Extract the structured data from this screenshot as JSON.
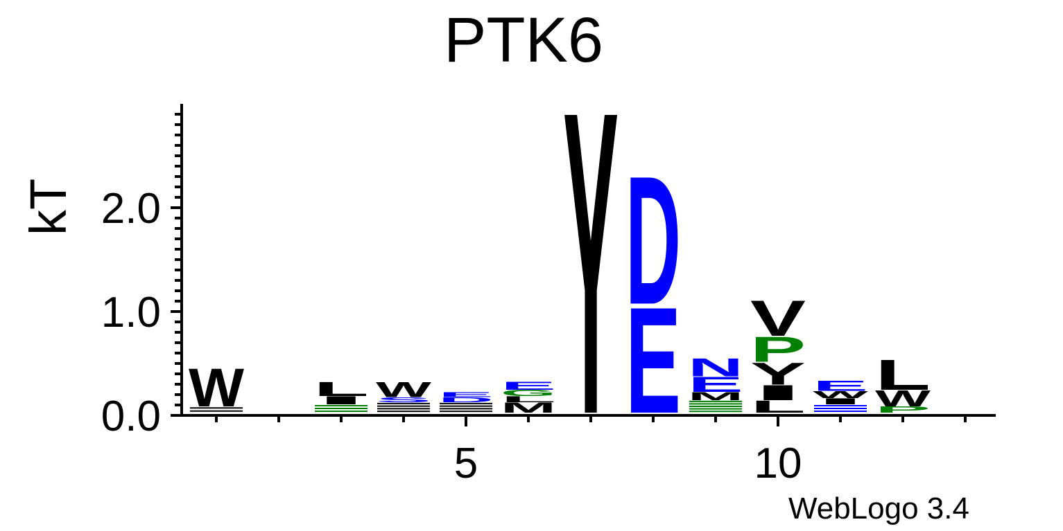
{
  "chart_data": {
    "type": "sequence-logo",
    "title": "PTK6",
    "ylabel": "kT",
    "xlabel": "",
    "ylim": [
      0,
      3.0
    ],
    "y_ticks": [
      "0.0",
      "1.0",
      "2.0"
    ],
    "x_ticks": [
      "5",
      "10"
    ],
    "positions": [
      1,
      2,
      3,
      4,
      5,
      6,
      7,
      8,
      9,
      10,
      11,
      12,
      13
    ],
    "colors": {
      "black": "#000000",
      "blue": "#0000ff",
      "green": "#008000"
    },
    "columns": [
      {
        "pos": 1,
        "stack": [
          {
            "letter": "·",
            "height": 0.06,
            "color": "black"
          },
          {
            "letter": "W",
            "height": 0.38,
            "color": "black"
          }
        ]
      },
      {
        "pos": 2,
        "stack": []
      },
      {
        "pos": 3,
        "stack": [
          {
            "letter": "·",
            "height": 0.08,
            "color": "green"
          },
          {
            "letter": "I",
            "height": 0.08,
            "color": "black"
          },
          {
            "letter": "L",
            "height": 0.14,
            "color": "black"
          }
        ]
      },
      {
        "pos": 4,
        "stack": [
          {
            "letter": "·",
            "height": 0.1,
            "color": "black"
          },
          {
            "letter": "S",
            "height": 0.05,
            "color": "blue"
          },
          {
            "letter": "W",
            "height": 0.15,
            "color": "black"
          }
        ]
      },
      {
        "pos": 5,
        "stack": [
          {
            "letter": "·",
            "height": 0.1,
            "color": "black"
          },
          {
            "letter": "D",
            "height": 0.05,
            "color": "blue"
          },
          {
            "letter": "E",
            "height": 0.05,
            "color": "blue"
          }
        ]
      },
      {
        "pos": 6,
        "stack": [
          {
            "letter": "M",
            "height": 0.1,
            "color": "black"
          },
          {
            "letter": "L",
            "height": 0.06,
            "color": "black"
          },
          {
            "letter": "G",
            "height": 0.06,
            "color": "green"
          },
          {
            "letter": "E",
            "height": 0.08,
            "color": "blue"
          }
        ]
      },
      {
        "pos": 7,
        "stack": [
          {
            "letter": "Y",
            "height": 3.0,
            "color": "black"
          }
        ]
      },
      {
        "pos": 8,
        "stack": [
          {
            "letter": "E",
            "height": 1.05,
            "color": "blue"
          },
          {
            "letter": "D",
            "height": 1.27,
            "color": "blue"
          }
        ]
      },
      {
        "pos": 9,
        "stack": [
          {
            "letter": "·",
            "height": 0.12,
            "color": "green"
          },
          {
            "letter": "M",
            "height": 0.08,
            "color": "black"
          },
          {
            "letter": "E",
            "height": 0.15,
            "color": "blue"
          },
          {
            "letter": "N",
            "height": 0.18,
            "color": "blue"
          }
        ]
      },
      {
        "pos": 10,
        "stack": [
          {
            "letter": "L",
            "height": 0.12,
            "color": "black"
          },
          {
            "letter": "I",
            "height": 0.15,
            "color": "black"
          },
          {
            "letter": "Y",
            "height": 0.22,
            "color": "black"
          },
          {
            "letter": "P",
            "height": 0.25,
            "color": "green"
          },
          {
            "letter": "V",
            "height": 0.35,
            "color": "black"
          }
        ]
      },
      {
        "pos": 11,
        "stack": [
          {
            "letter": "·",
            "height": 0.08,
            "color": "blue"
          },
          {
            "letter": "I",
            "height": 0.06,
            "color": "black"
          },
          {
            "letter": "W",
            "height": 0.07,
            "color": "black"
          },
          {
            "letter": "E",
            "height": 0.1,
            "color": "blue"
          }
        ]
      },
      {
        "pos": 12,
        "stack": [
          {
            "letter": "P",
            "height": 0.06,
            "color": "green"
          },
          {
            "letter": "W",
            "height": 0.16,
            "color": "black"
          },
          {
            "letter": "L",
            "height": 0.3,
            "color": "black"
          }
        ]
      },
      {
        "pos": 13,
        "stack": []
      }
    ]
  },
  "footer": {
    "credit": "WebLogo 3.4"
  }
}
